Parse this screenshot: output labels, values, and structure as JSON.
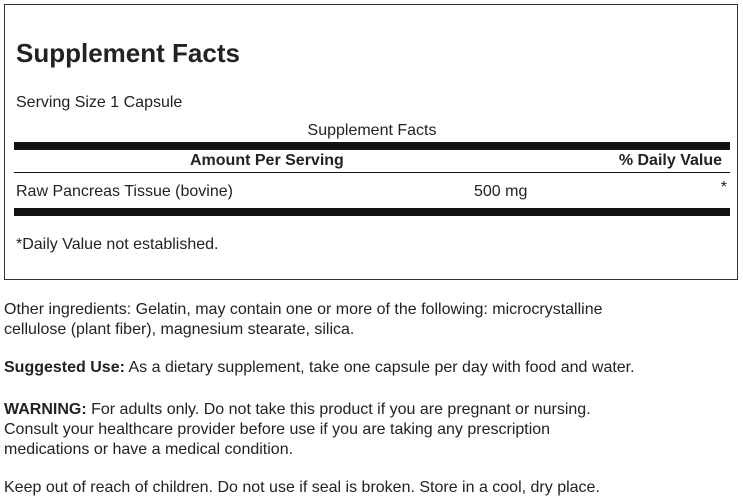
{
  "facts": {
    "title": "Supplement Facts",
    "serving_size": "Serving Size 1 Capsule",
    "table": {
      "caption": "Supplement Facts",
      "columns": [
        "Amount Per Serving",
        "% Daily Value"
      ],
      "rows": [
        [
          "Raw Pancreas Tissue (bovine)",
          "500 mg",
          "*"
        ]
      ]
    },
    "footnote": "*Daily Value not established."
  },
  "paragraphs": [
    {
      "lines": [
        "Other ingredients: Gelatin, may contain one or more of the following: microcrystalline",
        "cellulose (plant fiber), magnesium stearate, silica."
      ]
    },
    {
      "label": "Suggested Use:",
      "lines": [
        " As a dietary supplement, take one capsule per day with food and water."
      ]
    },
    {
      "label": "WARNING:",
      "lines": [
        " For adults only. Do not take this product if you are pregnant or nursing.",
        "Consult your healthcare provider before use if you are taking any prescription",
        "medications or have a medical condition."
      ]
    },
    {
      "lines": [
        "Keep out of reach of children. Do not use if seal is broken. Store in a cool, dry place."
      ]
    }
  ]
}
